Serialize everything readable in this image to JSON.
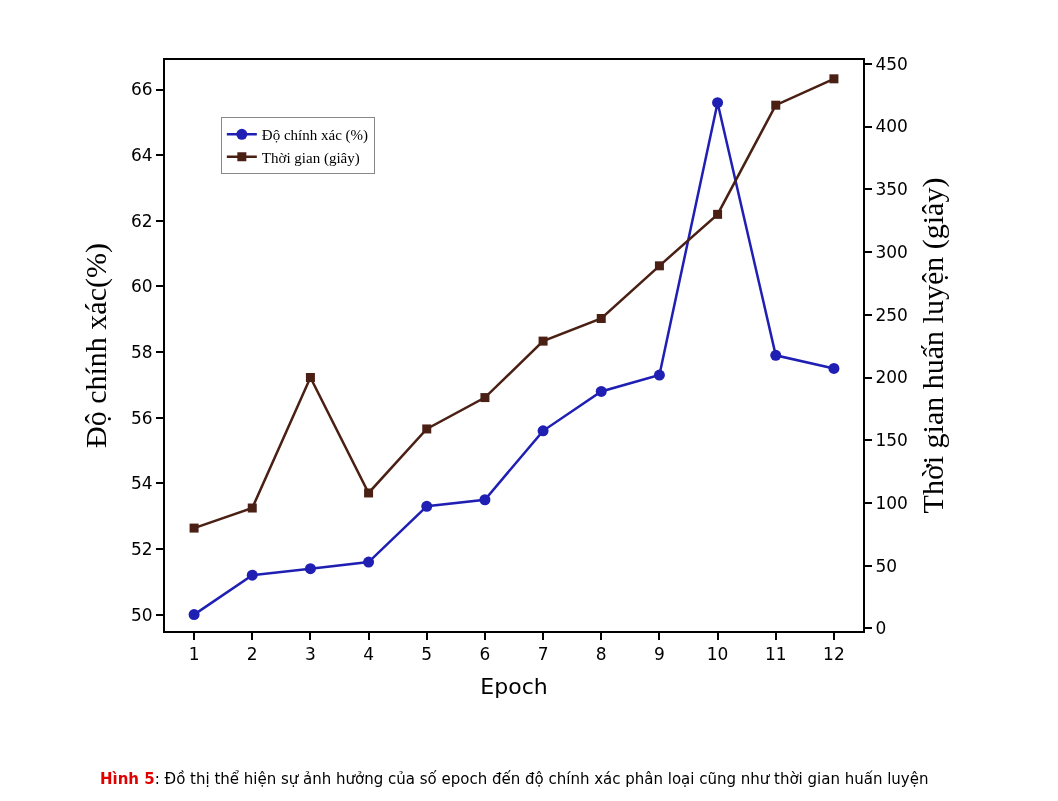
{
  "chart_data": {
    "type": "line",
    "xlabel": "Epoch",
    "ylabel": "Độ chính xác(%)",
    "y2label": "Thời gian huấn luyện (giây)",
    "x": [
      1,
      2,
      3,
      4,
      5,
      6,
      7,
      8,
      9,
      10,
      11,
      12
    ],
    "series": [
      {
        "name": "Độ chính xác (%)",
        "color": "#1f1fb4",
        "marker": "circle",
        "values": [
          50.0,
          51.2,
          51.4,
          51.6,
          53.3,
          53.5,
          55.6,
          56.8,
          57.3,
          65.6,
          57.9,
          57.5
        ]
      },
      {
        "name": "Thời gian (giây)",
        "color": "#4a1f14",
        "marker": "square",
        "axis": "y2",
        "values": [
          80,
          96,
          200,
          108,
          159,
          184,
          229,
          247,
          289,
          330,
          417,
          438
        ]
      }
    ],
    "xlim": [
      0.5,
      12.5
    ],
    "xticks": [
      1,
      2,
      3,
      4,
      5,
      6,
      7,
      8,
      9,
      10,
      11,
      12
    ],
    "ylim": [
      49.5,
      66.9
    ],
    "yticks": [
      50,
      52,
      54,
      56,
      58,
      60,
      62,
      64,
      66
    ],
    "y2lim": [
      -2,
      453
    ],
    "y2ticks": [
      0,
      50,
      100,
      150,
      200,
      250,
      300,
      350,
      400,
      450
    ],
    "legend": "top left",
    "line_style": "solid",
    "annotations": [
      "Hình 5: Đồ thị thể hiện sự ảnh hưởng của số epoch đến độ chính xác phân loại cũng như thời gian huấn luyện"
    ]
  }
}
